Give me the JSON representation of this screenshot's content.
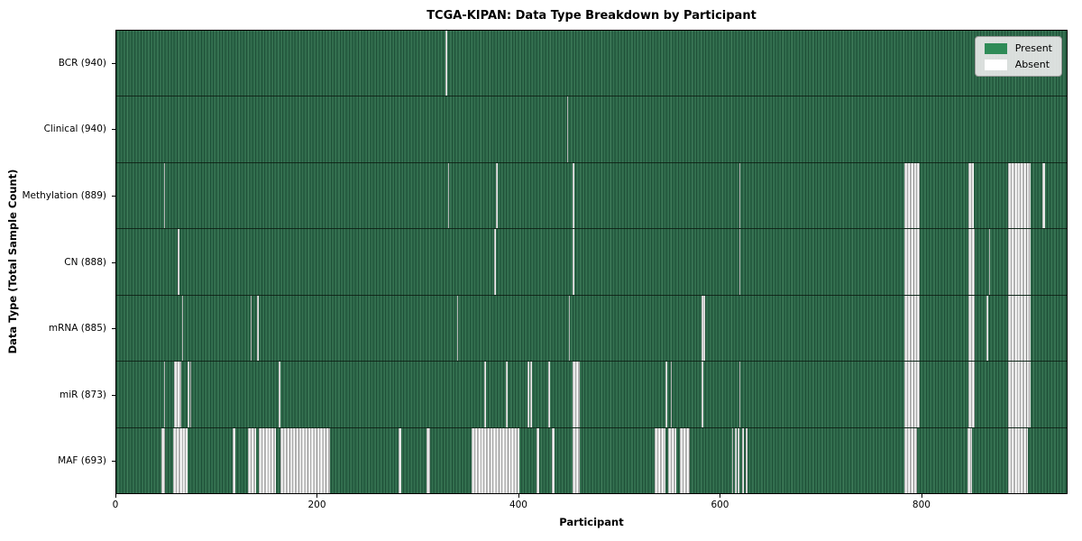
{
  "colors": {
    "present": "#2e8b57",
    "present_dark": "#1f5038",
    "present_mid": "#2e6a4a",
    "present_light": "#3f7a59",
    "absent": "#ffffff",
    "row_divider": "#12251a",
    "legend_bg": "#e9e9e9",
    "legend_border": "#9a9a9a"
  },
  "chart_data": {
    "type": "heatmap",
    "title": "TCGA-KIPAN: Data Type Breakdown by Participant",
    "xlabel": "Participant",
    "ylabel": "Data Type (Total Sample Count)",
    "legend_labels": [
      "Present",
      "Absent"
    ],
    "legend_position": "upper right",
    "grid": false,
    "x_range": [
      0,
      945
    ],
    "x_ticks": [
      0,
      200,
      400,
      600,
      800
    ],
    "cell_values": {
      "present": 1,
      "absent": 0
    },
    "rows": [
      {
        "label": "BCR (940)",
        "total_samples": 940,
        "absent_ranges": [
          [
            327,
            328.5
          ]
        ]
      },
      {
        "label": "Clinical (940)",
        "total_samples": 940,
        "absent_ranges": [
          [
            447,
            448.5
          ]
        ]
      },
      {
        "label": "Methylation (889)",
        "total_samples": 889,
        "absent_ranges": [
          [
            47,
            48.5
          ],
          [
            329,
            330.5
          ],
          [
            377,
            378.5
          ],
          [
            453,
            454.5
          ],
          [
            618,
            619.5
          ],
          [
            782,
            797
          ],
          [
            846,
            851
          ],
          [
            885,
            907
          ],
          [
            919,
            922
          ]
        ]
      },
      {
        "label": "CN (888)",
        "total_samples": 888,
        "absent_ranges": [
          [
            61,
            62.5
          ],
          [
            375,
            376.5
          ],
          [
            453,
            454.5
          ],
          [
            618,
            619.5
          ],
          [
            782,
            797
          ],
          [
            846,
            852
          ],
          [
            866,
            867.5
          ],
          [
            885,
            907
          ]
        ]
      },
      {
        "label": "mRNA (885)",
        "total_samples": 885,
        "absent_ranges": [
          [
            65,
            66.5
          ],
          [
            133,
            134.5
          ],
          [
            140,
            141.5
          ],
          [
            338,
            339.5
          ],
          [
            449,
            450.5
          ],
          [
            581,
            582.5
          ],
          [
            583,
            584.5
          ],
          [
            782,
            797
          ],
          [
            846,
            852
          ],
          [
            864,
            865.5
          ],
          [
            885,
            907
          ]
        ]
      },
      {
        "label": "miR (873)",
        "total_samples": 873,
        "absent_ranges": [
          [
            47,
            48.5
          ],
          [
            57,
            64
          ],
          [
            71,
            72.5
          ],
          [
            73,
            74.5
          ],
          [
            161,
            162.5
          ],
          [
            365,
            366.5
          ],
          [
            387,
            388.5
          ],
          [
            408,
            409.5
          ],
          [
            411,
            412.5
          ],
          [
            429,
            430.5
          ],
          [
            453,
            460
          ],
          [
            545,
            546.5
          ],
          [
            550,
            551.5
          ],
          [
            581,
            582.5
          ],
          [
            618,
            619.5
          ],
          [
            782,
            797
          ],
          [
            846,
            852
          ],
          [
            885,
            907
          ]
        ]
      },
      {
        "label": "MAF (693)",
        "total_samples": 693,
        "absent_ranges": [
          [
            45,
            48
          ],
          [
            56,
            71
          ],
          [
            115,
            118
          ],
          [
            131,
            139
          ],
          [
            141,
            158
          ],
          [
            163,
            212
          ],
          [
            280,
            283
          ],
          [
            308,
            311
          ],
          [
            353,
            400
          ],
          [
            417,
            419.5
          ],
          [
            432,
            435
          ],
          [
            453,
            460
          ],
          [
            534,
            545
          ],
          [
            548,
            556
          ],
          [
            559,
            569
          ],
          [
            611,
            612.5
          ],
          [
            614,
            615.5
          ],
          [
            617,
            618.5
          ],
          [
            621,
            622.5
          ],
          [
            625,
            626.5
          ],
          [
            782,
            795
          ],
          [
            845,
            849
          ],
          [
            885,
            905
          ]
        ]
      }
    ]
  }
}
